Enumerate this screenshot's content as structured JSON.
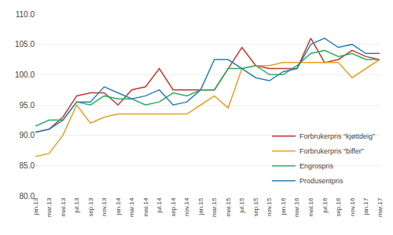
{
  "chart_data": {
    "type": "line",
    "categories": [
      "jan.13",
      "mar.13",
      "mai.13",
      "jul.13",
      "sep.13",
      "nov.13",
      "jan.14",
      "mar.14",
      "mai.14",
      "jul.14",
      "sep.14",
      "nov.14",
      "jan.15",
      "mar.15",
      "mai.15",
      "jul.15",
      "sep.15",
      "nov.15",
      "jan.16",
      "mar.16",
      "mai.16",
      "jul.16",
      "sep.16",
      "nov.16",
      "jan.17",
      "mar.17"
    ],
    "series": [
      {
        "name": "Forbrukerpris “kjøttdeig”",
        "color": "#C0392B",
        "values": [
          90.5,
          91.0,
          93.0,
          96.5,
          97.0,
          97.0,
          95.0,
          97.5,
          98.0,
          101.0,
          97.5,
          97.5,
          97.5,
          97.5,
          101.0,
          104.5,
          101.5,
          101.0,
          101.0,
          101.0,
          106.0,
          102.0,
          102.5,
          104.0,
          103.0,
          102.5
        ]
      },
      {
        "name": "Forbrukerpris “biffer”",
        "color": "#E8A020",
        "values": [
          86.5,
          87.0,
          90.0,
          95.0,
          92.0,
          93.0,
          93.5,
          93.5,
          93.5,
          93.5,
          93.5,
          93.5,
          95.0,
          96.5,
          94.5,
          101.0,
          101.5,
          101.5,
          102.0,
          102.0,
          102.0,
          102.0,
          102.0,
          99.5,
          101.0,
          102.5
        ]
      },
      {
        "name": "Engrospris",
        "color": "#27AE60",
        "values": [
          91.5,
          92.5,
          92.5,
          95.5,
          95.0,
          96.5,
          96.0,
          96.0,
          95.0,
          95.5,
          97.0,
          96.5,
          97.5,
          97.5,
          101.0,
          101.0,
          101.5,
          100.0,
          100.0,
          101.5,
          103.5,
          104.0,
          103.0,
          103.5,
          102.5,
          102.5
        ]
      },
      {
        "name": "Produsentpris",
        "color": "#2980B9",
        "values": [
          90.5,
          91.0,
          92.5,
          95.5,
          95.5,
          98.0,
          97.0,
          96.0,
          96.5,
          97.5,
          95.0,
          95.5,
          97.5,
          102.5,
          102.5,
          101.0,
          99.5,
          99.0,
          100.5,
          101.0,
          105.0,
          106.0,
          104.5,
          105.0,
          103.5,
          103.5
        ]
      }
    ],
    "ylim": [
      80.0,
      110.0
    ],
    "yticks": [
      {
        "value": 80,
        "label": "80.0"
      },
      {
        "value": 85,
        "label": "85.0"
      },
      {
        "value": 90,
        "label": "90.0"
      },
      {
        "value": 95,
        "label": "95.0"
      },
      {
        "value": 100,
        "label": "100.0"
      },
      {
        "value": 105,
        "label": "105.0"
      },
      {
        "value": 110,
        "label": "110.0"
      }
    ],
    "grid": true,
    "legend": "lower right"
  }
}
